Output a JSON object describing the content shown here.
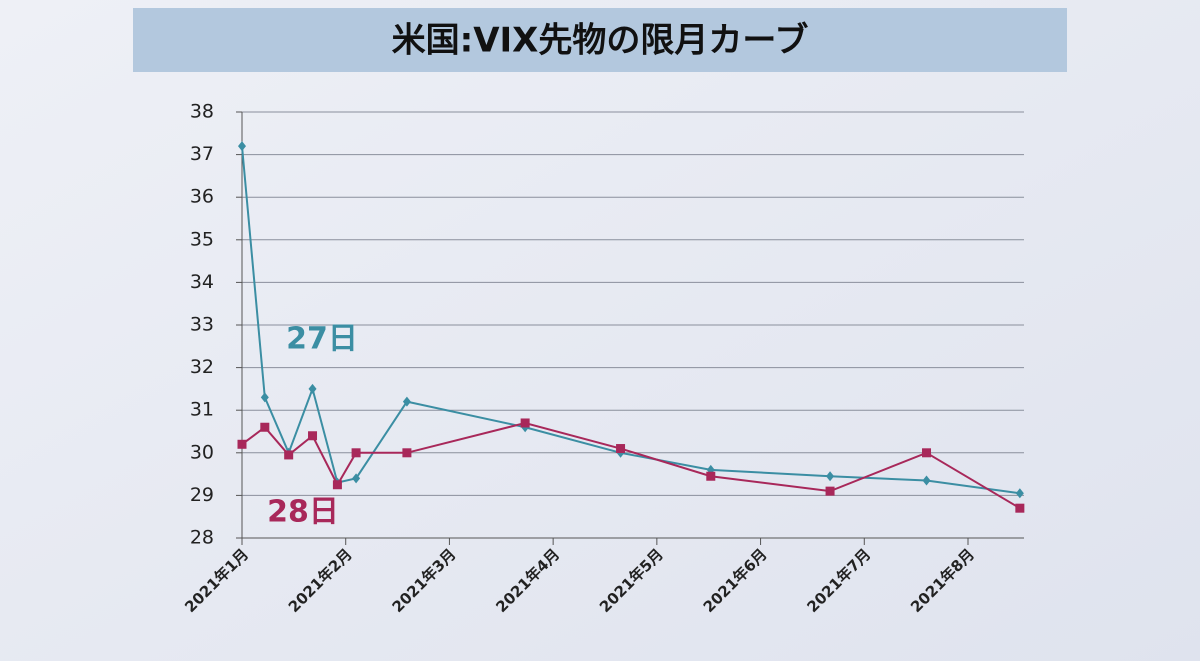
{
  "chart_data": {
    "type": "line",
    "title": "米国:VIX先物の限月カーブ",
    "x": [
      1.0,
      1.22,
      1.45,
      1.68,
      1.92,
      2.1,
      2.59,
      3.73,
      4.65,
      5.52,
      6.67,
      7.6,
      8.5
    ],
    "xlim": [
      1,
      8.54
    ],
    "xticks": [
      {
        "value": 1,
        "label": "2021年1月"
      },
      {
        "value": 2,
        "label": "2021年2月"
      },
      {
        "value": 3,
        "label": "2021年3月"
      },
      {
        "value": 4,
        "label": "2021年4月"
      },
      {
        "value": 5,
        "label": "2021年5月"
      },
      {
        "value": 6,
        "label": "2021年6月"
      },
      {
        "value": 7,
        "label": "2021年7月"
      },
      {
        "value": 8,
        "label": "2021年8月"
      }
    ],
    "ylim": [
      28,
      38
    ],
    "yticks": [
      28,
      29,
      30,
      31,
      32,
      33,
      34,
      35,
      36,
      37,
      38
    ],
    "grid": true,
    "series": [
      {
        "name": "27日",
        "color": "#3b8ea3",
        "marker": "diamond",
        "values": [
          37.2,
          31.3,
          30.0,
          31.5,
          29.3,
          29.4,
          31.2,
          30.6,
          30.0,
          29.6,
          29.45,
          29.35,
          29.05
        ]
      },
      {
        "name": "28日",
        "color": "#a8285a",
        "marker": "square",
        "values": [
          30.2,
          30.6,
          29.95,
          30.4,
          29.25,
          30.0,
          30.0,
          30.7,
          30.1,
          29.45,
          29.1,
          30.0,
          28.7
        ]
      }
    ]
  }
}
